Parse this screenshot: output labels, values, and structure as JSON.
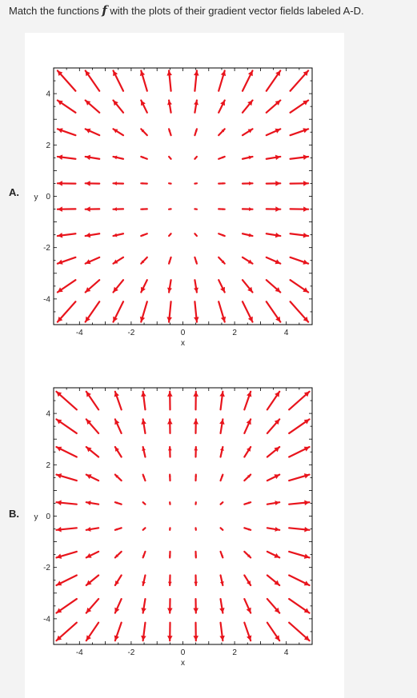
{
  "question": {
    "prefix": "Match the functions ",
    "fvar": "f",
    "suffix": " with the plots of their gradient vector fields labeled A-D."
  },
  "colors": {
    "arrow": "#e8141c",
    "frame": "#000000",
    "background": "#f3f3f3",
    "panel": "#ffffff"
  },
  "chart_data": [
    {
      "label": "A.",
      "type": "vector-field",
      "xlabel": "x",
      "ylabel": "y",
      "xlim": [
        -5,
        5
      ],
      "ylim": [
        -5,
        5
      ],
      "xticks": [
        -4,
        -2,
        0,
        2,
        4
      ],
      "yticks": [
        -4,
        -2,
        0,
        2,
        4
      ],
      "field": {
        "u": "x",
        "v": "y*|y|/4"
      },
      "grid_points": [
        -4.5,
        -3.5,
        -2.5,
        -1.5,
        -0.5,
        0.5,
        1.5,
        2.5,
        3.5,
        4.5
      ],
      "arrow_color": "#e8141c"
    },
    {
      "label": "B.",
      "type": "vector-field",
      "xlabel": "x",
      "ylabel": "y",
      "xlim": [
        -5,
        5
      ],
      "ylim": [
        -5,
        5
      ],
      "xticks": [
        -4,
        -2,
        0,
        2,
        4
      ],
      "yticks": [
        -4,
        -2,
        0,
        2,
        4
      ],
      "field": {
        "u": "x*|x|/4",
        "v": "y"
      },
      "grid_points": [
        -4.5,
        -3.5,
        -2.5,
        -1.5,
        -0.5,
        0.5,
        1.5,
        2.5,
        3.5,
        4.5
      ],
      "arrow_color": "#e8141c"
    }
  ]
}
